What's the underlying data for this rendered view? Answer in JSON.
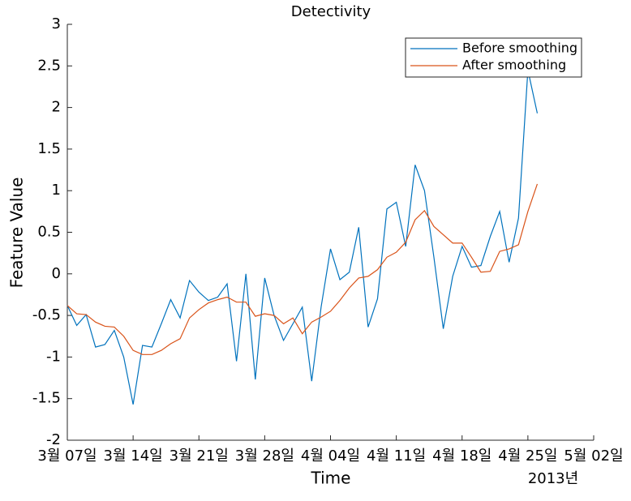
{
  "chart_data": {
    "type": "line",
    "title": "Detectivity",
    "xlabel": "Time",
    "ylabel": "Feature Value",
    "x_secondary_label": "2013년",
    "x": [
      "2013-03-07",
      "2013-03-08",
      "2013-03-09",
      "2013-03-10",
      "2013-03-11",
      "2013-03-12",
      "2013-03-13",
      "2013-03-14",
      "2013-03-15",
      "2013-03-16",
      "2013-03-17",
      "2013-03-18",
      "2013-03-19",
      "2013-03-20",
      "2013-03-21",
      "2013-03-22",
      "2013-03-23",
      "2013-03-24",
      "2013-03-25",
      "2013-03-26",
      "2013-03-27",
      "2013-03-28",
      "2013-03-29",
      "2013-03-30",
      "2013-03-31",
      "2013-04-01",
      "2013-04-02",
      "2013-04-03",
      "2013-04-04",
      "2013-04-05",
      "2013-04-06",
      "2013-04-07",
      "2013-04-08",
      "2013-04-09",
      "2013-04-10",
      "2013-04-11",
      "2013-04-12",
      "2013-04-13",
      "2013-04-14",
      "2013-04-15",
      "2013-04-16",
      "2013-04-17",
      "2013-04-18",
      "2013-04-19",
      "2013-04-20",
      "2013-04-21",
      "2013-04-22",
      "2013-04-23",
      "2013-04-24",
      "2013-04-25",
      "2013-04-26"
    ],
    "series": [
      {
        "name": "Before smoothing",
        "color": "#0072BD",
        "values": [
          -0.38,
          -0.62,
          -0.49,
          -0.88,
          -0.85,
          -0.68,
          -1.0,
          -1.57,
          -0.86,
          -0.88,
          -0.6,
          -0.31,
          -0.53,
          -0.08,
          -0.22,
          -0.32,
          -0.28,
          -0.12,
          -1.05,
          0.0,
          -1.27,
          -0.05,
          -0.5,
          -0.8,
          -0.6,
          -0.4,
          -1.29,
          -0.4,
          0.3,
          -0.07,
          0.02,
          0.56,
          -0.64,
          -0.3,
          0.78,
          0.86,
          0.33,
          1.31,
          1.0,
          0.2,
          -0.66,
          -0.03,
          0.33,
          0.08,
          0.1,
          0.45,
          0.75,
          0.14,
          0.67,
          2.45,
          1.93
        ]
      },
      {
        "name": "After smoothing",
        "color": "#D95319",
        "values": [
          -0.38,
          -0.48,
          -0.49,
          -0.58,
          -0.63,
          -0.64,
          -0.75,
          -0.92,
          -0.97,
          -0.97,
          -0.92,
          -0.84,
          -0.78,
          -0.53,
          -0.43,
          -0.35,
          -0.31,
          -0.28,
          -0.34,
          -0.34,
          -0.51,
          -0.48,
          -0.5,
          -0.6,
          -0.53,
          -0.72,
          -0.58,
          -0.52,
          -0.45,
          -0.32,
          -0.17,
          -0.05,
          -0.03,
          0.05,
          0.2,
          0.26,
          0.38,
          0.65,
          0.76,
          0.57,
          0.47,
          0.37,
          0.37,
          0.2,
          0.02,
          0.03,
          0.27,
          0.3,
          0.35,
          0.75,
          1.08
        ]
      }
    ],
    "xlim": [
      "2013-03-07",
      "2013-05-02"
    ],
    "xticks": [
      {
        "value": "2013-03-07",
        "label": "3월 07일"
      },
      {
        "value": "2013-03-14",
        "label": "3월 14일"
      },
      {
        "value": "2013-03-21",
        "label": "3월 21일"
      },
      {
        "value": "2013-03-28",
        "label": "3월 28일"
      },
      {
        "value": "2013-04-04",
        "label": "4월 04일"
      },
      {
        "value": "2013-04-11",
        "label": "4월 11일"
      },
      {
        "value": "2013-04-18",
        "label": "4월 18일"
      },
      {
        "value": "2013-04-25",
        "label": "4월 25일"
      },
      {
        "value": "2013-05-02",
        "label": "5월 02일"
      }
    ],
    "ylim": [
      -2,
      3
    ],
    "yticks": [
      -2,
      -1.5,
      -1,
      -0.5,
      0,
      0.5,
      1,
      1.5,
      2,
      2.5,
      3
    ],
    "legend": "upper right"
  }
}
